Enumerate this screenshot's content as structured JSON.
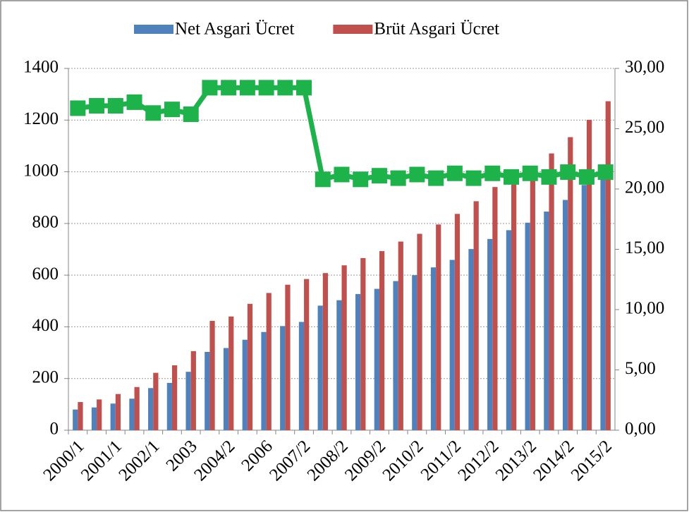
{
  "chart_data": {
    "type": "bar",
    "categories": [
      "2000/1",
      null,
      "2001/1",
      null,
      "2002/1",
      null,
      "2003",
      null,
      "2004/2",
      null,
      "2006",
      null,
      "2007/2",
      null,
      "2008/2",
      null,
      "2009/2",
      null,
      "2010/2",
      null,
      "2011/2",
      null,
      "2012/2",
      null,
      "2013/2",
      null,
      "2014/2",
      null,
      "2015/2"
    ],
    "series": [
      {
        "name": "Net Asgari Ücret",
        "color": "#4f81bd",
        "values": [
          80,
          88,
          103,
          122,
          163,
          183,
          226,
          303,
          318,
          350,
          380,
          403,
          419,
          482,
          503,
          527,
          547,
          577,
          600,
          630,
          659,
          701,
          740,
          774,
          803,
          846,
          891,
          949,
          1000
        ]
      },
      {
        "name": "Brüt Asgari Ücret",
        "color": "#c0504d",
        "values": [
          109,
          119,
          140,
          167,
          222,
          251,
          306,
          423,
          440,
          489,
          531,
          563,
          585,
          608,
          638,
          666,
          693,
          730,
          760,
          796,
          837,
          886,
          941,
          978,
          1021,
          1071,
          1134,
          1201,
          1273
        ]
      },
      {
        "type": "line",
        "axis": "y2",
        "color": "#1db34a",
        "values": [
          26.7,
          26.9,
          26.9,
          27.2,
          26.3,
          26.6,
          26.2,
          28.4,
          28.4,
          28.4,
          28.4,
          28.4,
          28.4,
          20.8,
          21.2,
          20.8,
          21.1,
          20.9,
          21.2,
          20.9,
          21.3,
          20.9,
          21.3,
          21.0,
          21.3,
          21.0,
          21.4,
          21.0,
          21.4
        ]
      }
    ],
    "ylim": [
      0,
      1400
    ],
    "yticks": [
      0,
      200,
      400,
      600,
      800,
      1000,
      1200,
      1400
    ],
    "y2lim": [
      0,
      30
    ],
    "y2ticks": [
      {
        "value": 0,
        "label": "0,00"
      },
      {
        "value": 5,
        "label": "5,00"
      },
      {
        "value": 10,
        "label": "10,00"
      },
      {
        "value": 15,
        "label": "15,00"
      },
      {
        "value": 20,
        "label": "20,00"
      },
      {
        "value": 25,
        "label": "25,00"
      },
      {
        "value": 30,
        "label": "30,00"
      }
    ],
    "grid": true,
    "legend": "top"
  }
}
